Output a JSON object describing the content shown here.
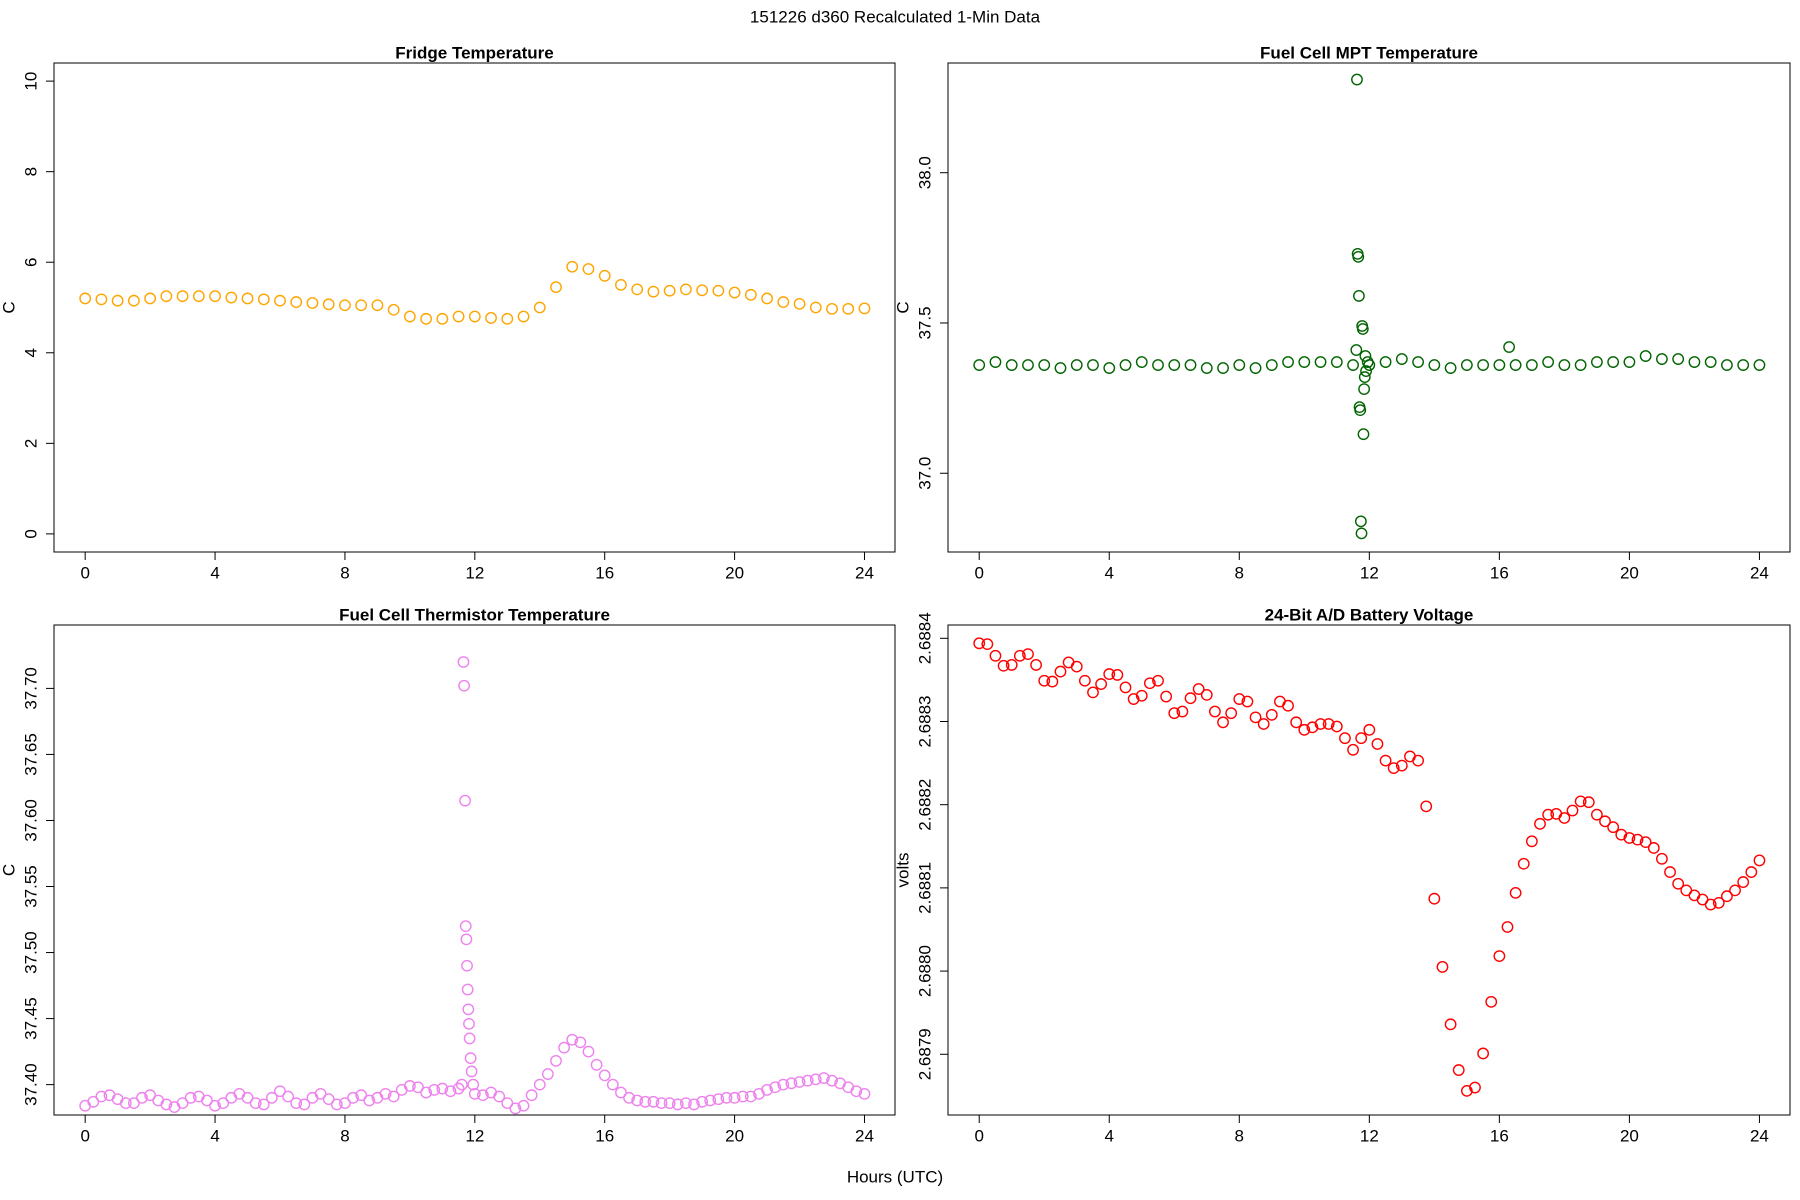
{
  "title": "151226   d360   Recalculated 1-Min Data",
  "xlabel": "Hours (UTC)",
  "chart_data": [
    {
      "type": "scatter",
      "title": "Fridge Temperature",
      "ylabel": "C",
      "color": "#FFA500",
      "xlim": [
        -0.96,
        24.94
      ],
      "xticks": [
        0,
        4,
        8,
        12,
        16,
        20,
        24
      ],
      "ylim": [
        -0.4,
        10.4
      ],
      "yticks": [
        0,
        2,
        4,
        6,
        8,
        10
      ],
      "x": [
        0,
        0.5,
        1,
        1.5,
        2,
        2.5,
        3,
        3.5,
        4,
        4.5,
        5,
        5.5,
        6,
        6.5,
        7,
        7.5,
        8,
        8.5,
        9,
        9.5,
        10,
        10.5,
        11,
        11.5,
        12,
        12.5,
        13,
        13.5,
        14,
        14.5,
        15,
        15.5,
        16,
        16.5,
        17,
        17.5,
        18,
        18.5,
        19,
        19.5,
        20,
        20.5,
        21,
        21.5,
        22,
        22.5,
        23,
        23.5,
        24
      ],
      "values": [
        5.2,
        5.18,
        5.15,
        5.15,
        5.2,
        5.25,
        5.25,
        5.25,
        5.25,
        5.22,
        5.2,
        5.18,
        5.15,
        5.12,
        5.1,
        5.07,
        5.05,
        5.05,
        5.05,
        4.95,
        4.8,
        4.75,
        4.75,
        4.8,
        4.8,
        4.77,
        4.75,
        4.8,
        5.0,
        5.45,
        5.9,
        5.85,
        5.7,
        5.5,
        5.4,
        5.35,
        5.37,
        5.4,
        5.38,
        5.37,
        5.33,
        5.28,
        5.2,
        5.12,
        5.08,
        5.0,
        4.97,
        4.97,
        4.98
      ]
    },
    {
      "type": "scatter",
      "title": "Fuel Cell MPT Temperature",
      "ylabel": "C",
      "color": "#006400",
      "xlim": [
        -0.96,
        24.94
      ],
      "xticks": [
        0,
        4,
        8,
        12,
        16,
        20,
        24
      ],
      "ylim": [
        36.738,
        38.365
      ],
      "yticks": [
        {
          "value": 37,
          "label": "37.0"
        },
        37.5,
        {
          "value": 38,
          "label": "38.0"
        }
      ],
      "x": [
        0,
        0.5,
        1,
        1.5,
        2,
        2.5,
        3,
        3.5,
        4,
        4.5,
        5,
        5.5,
        6,
        6.5,
        7,
        7.5,
        8,
        8.5,
        9,
        9.5,
        10,
        10.5,
        11,
        11.5,
        11.6,
        11.62,
        11.64,
        11.66,
        11.68,
        11.7,
        11.72,
        11.74,
        11.76,
        11.78,
        11.8,
        11.82,
        11.84,
        11.86,
        11.88,
        11.9,
        11.95,
        12,
        12.5,
        13,
        13.5,
        14,
        14.5,
        15,
        15.5,
        16,
        16.3,
        16.5,
        17,
        17.5,
        18,
        18.5,
        19,
        19.5,
        20,
        20.5,
        21,
        21.5,
        22,
        22.5,
        23,
        23.5,
        24
      ],
      "values": [
        37.36,
        37.37,
        37.36,
        37.36,
        37.36,
        37.35,
        37.36,
        37.36,
        37.35,
        37.36,
        37.37,
        37.36,
        37.36,
        37.36,
        37.35,
        37.35,
        37.36,
        37.35,
        37.36,
        37.37,
        37.37,
        37.37,
        37.37,
        37.36,
        37.41,
        38.31,
        37.73,
        37.72,
        37.59,
        37.22,
        37.21,
        36.84,
        36.8,
        37.49,
        37.48,
        37.13,
        37.28,
        37.32,
        37.39,
        37.34,
        37.37,
        37.36,
        37.37,
        37.38,
        37.37,
        37.36,
        37.35,
        37.36,
        37.36,
        37.36,
        37.42,
        37.36,
        37.36,
        37.37,
        37.36,
        37.36,
        37.37,
        37.37,
        37.37,
        37.39,
        37.38,
        37.38,
        37.37,
        37.37,
        37.36,
        37.36,
        37.36
      ]
    },
    {
      "type": "scatter",
      "title": "Fuel Cell Thermistor Temperature",
      "ylabel": "C",
      "color": "#EE82EE",
      "xlim": [
        -0.96,
        24.94
      ],
      "xticks": [
        0,
        4,
        8,
        12,
        16,
        20,
        24
      ],
      "ylim": [
        37.377,
        37.748
      ],
      "yticks": [
        {
          "value": 37.4,
          "label": "37.40"
        },
        37.45,
        {
          "value": 37.5,
          "label": "37.50"
        },
        37.55,
        {
          "value": 37.6,
          "label": "37.60"
        },
        37.65,
        {
          "value": 37.7,
          "label": "37.70"
        }
      ],
      "x": [
        0,
        0.25,
        0.5,
        0.75,
        1,
        1.25,
        1.5,
        1.75,
        2,
        2.25,
        2.5,
        2.75,
        3,
        3.25,
        3.5,
        3.75,
        4,
        4.25,
        4.5,
        4.75,
        5,
        5.25,
        5.5,
        5.75,
        6,
        6.25,
        6.5,
        6.75,
        7,
        7.25,
        7.5,
        7.75,
        8,
        8.25,
        8.5,
        8.75,
        9,
        9.25,
        9.5,
        9.75,
        10,
        10.25,
        10.5,
        10.75,
        11,
        11.25,
        11.5,
        11.6,
        11.65,
        11.67,
        11.7,
        11.72,
        11.74,
        11.76,
        11.78,
        11.8,
        11.82,
        11.84,
        11.87,
        11.9,
        11.95,
        12,
        12.25,
        12.5,
        12.75,
        13,
        13.25,
        13.5,
        13.75,
        14,
        14.25,
        14.5,
        14.75,
        15,
        15.25,
        15.5,
        15.75,
        16,
        16.25,
        16.5,
        16.75,
        17,
        17.25,
        17.5,
        17.75,
        18,
        18.25,
        18.5,
        18.75,
        19,
        19.25,
        19.5,
        19.75,
        20,
        20.25,
        20.5,
        20.75,
        21,
        21.25,
        21.5,
        21.75,
        22,
        22.25,
        22.5,
        22.75,
        23,
        23.25,
        23.5,
        23.75,
        24
      ],
      "values": [
        37.384,
        37.387,
        37.391,
        37.392,
        37.389,
        37.386,
        37.386,
        37.39,
        37.392,
        37.388,
        37.385,
        37.383,
        37.386,
        37.39,
        37.391,
        37.388,
        37.384,
        37.386,
        37.39,
        37.393,
        37.39,
        37.386,
        37.385,
        37.39,
        37.395,
        37.391,
        37.386,
        37.385,
        37.39,
        37.393,
        37.389,
        37.385,
        37.386,
        37.39,
        37.392,
        37.388,
        37.39,
        37.393,
        37.391,
        37.396,
        37.399,
        37.398,
        37.394,
        37.396,
        37.397,
        37.395,
        37.397,
        37.4,
        37.72,
        37.702,
        37.615,
        37.52,
        37.51,
        37.49,
        37.472,
        37.457,
        37.446,
        37.435,
        37.42,
        37.41,
        37.4,
        37.393,
        37.392,
        37.394,
        37.391,
        37.386,
        37.382,
        37.384,
        37.392,
        37.4,
        37.408,
        37.418,
        37.428,
        37.434,
        37.432,
        37.425,
        37.415,
        37.407,
        37.4,
        37.394,
        37.39,
        37.388,
        37.387,
        37.387,
        37.386,
        37.386,
        37.385,
        37.386,
        37.385,
        37.387,
        37.388,
        37.389,
        37.39,
        37.39,
        37.391,
        37.391,
        37.393,
        37.396,
        37.398,
        37.4,
        37.401,
        37.402,
        37.403,
        37.404,
        37.405,
        37.403,
        37.401,
        37.398,
        37.395,
        37.393
      ]
    },
    {
      "type": "scatter",
      "title": "24-Bit A/D Battery Voltage",
      "ylabel": "volts",
      "color": "#FF0000",
      "xlim": [
        -0.96,
        24.94
      ],
      "xticks": [
        0,
        4,
        8,
        12,
        16,
        20,
        24
      ],
      "ylim": [
        2.687827,
        2.688416
      ],
      "yticks": [
        2.6879,
        {
          "value": 2.688,
          "label": "2.6880"
        },
        2.6881,
        2.6882,
        2.6883,
        2.6884
      ],
      "x": [
        0,
        0.25,
        0.5,
        0.75,
        1,
        1.25,
        1.5,
        1.75,
        2,
        2.25,
        2.5,
        2.75,
        3,
        3.25,
        3.5,
        3.75,
        4,
        4.25,
        4.5,
        4.75,
        5,
        5.25,
        5.5,
        5.75,
        6,
        6.25,
        6.5,
        6.75,
        7,
        7.25,
        7.5,
        7.75,
        8,
        8.25,
        8.5,
        8.75,
        9,
        9.25,
        9.5,
        9.75,
        10,
        10.25,
        10.5,
        10.75,
        11,
        11.25,
        11.5,
        11.75,
        12,
        12.25,
        12.5,
        12.75,
        13,
        13.25,
        13.5,
        13.75,
        14,
        14.25,
        14.5,
        14.75,
        15,
        15.25,
        15.5,
        15.75,
        16,
        16.25,
        16.5,
        16.75,
        17,
        17.25,
        17.5,
        17.75,
        18,
        18.25,
        18.5,
        18.75,
        19,
        19.25,
        19.5,
        19.75,
        20,
        20.25,
        20.5,
        20.75,
        21,
        21.25,
        21.5,
        21.75,
        22,
        22.25,
        22.5,
        22.75,
        23,
        23.25,
        23.5,
        23.75,
        24
      ],
      "values": [
        2.688394,
        2.688393,
        2.688379,
        2.688367,
        2.688368,
        2.688379,
        2.688381,
        2.688368,
        2.688349,
        2.688348,
        2.68836,
        2.688371,
        2.688366,
        2.688349,
        2.688335,
        2.688345,
        2.688357,
        2.688356,
        2.688341,
        2.688327,
        2.688331,
        2.688346,
        2.688349,
        2.68833,
        2.68831,
        2.688312,
        2.688328,
        2.688339,
        2.688332,
        2.688312,
        2.688299,
        2.68831,
        2.688327,
        2.688324,
        2.688305,
        2.688297,
        2.688308,
        2.688324,
        2.688319,
        2.688299,
        2.68829,
        2.688293,
        2.688297,
        2.688297,
        2.688294,
        2.68828,
        2.688266,
        2.68828,
        2.68829,
        2.688273,
        2.688253,
        2.688244,
        2.688247,
        2.688258,
        2.688253,
        2.688198,
        2.688087,
        2.688005,
        2.687936,
        2.687881,
        2.687856,
        2.68786,
        2.687901,
        2.687963,
        2.688018,
        2.688053,
        2.688094,
        2.688129,
        2.688156,
        2.688177,
        2.688188,
        2.688189,
        2.688184,
        2.688193,
        2.688204,
        2.688203,
        2.688188,
        2.68818,
        2.688173,
        2.688164,
        2.68816,
        2.688158,
        2.688155,
        2.688148,
        2.688135,
        2.688119,
        2.688105,
        2.688097,
        2.688091,
        2.688086,
        2.68808,
        2.688082,
        2.68809,
        2.688097,
        2.688107,
        2.688119,
        2.688133
      ]
    }
  ]
}
